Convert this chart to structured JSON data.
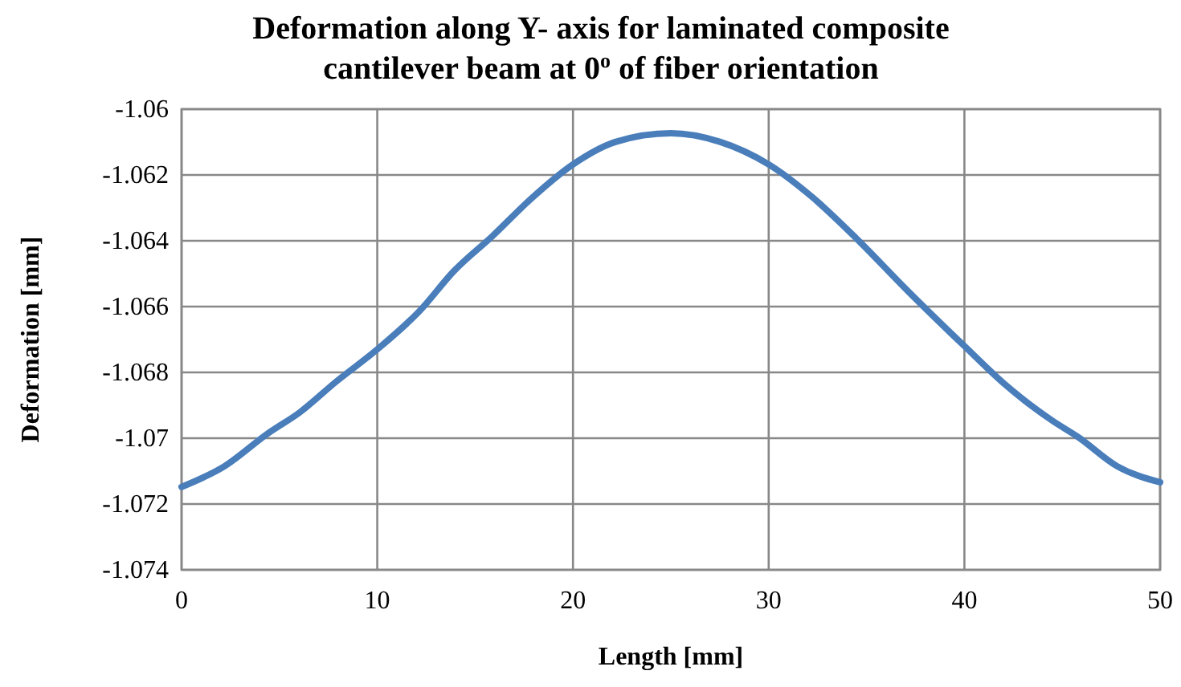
{
  "chart_data": {
    "type": "line",
    "title": "Deformation along Y- axis for laminated composite cantilever beam at 0$^{o}$ of fiber orientation",
    "xlabel": "Length [mm]",
    "ylabel": "Deformation [mm]",
    "xlim": [
      0,
      50
    ],
    "xticks": [
      0,
      10,
      20,
      30,
      40,
      50
    ],
    "ylim": [
      -1.074,
      -1.06
    ],
    "yticks": [
      -1.074,
      -1.072,
      -1.07,
      -1.068,
      -1.066,
      -1.064,
      -1.062,
      -1.06
    ],
    "grid": true,
    "marker": "none",
    "line_style": "solid",
    "series": [
      {
        "color": "#4a7ebb",
        "x": [
          0,
          2.2,
          4.4,
          6.05,
          7.9,
          10,
          12.2,
          13.9,
          15.9,
          17.9,
          20,
          22.2,
          25,
          27.5,
          30,
          32.2,
          34.5,
          37.1,
          40,
          42.1,
          44.5,
          45.8,
          47.8,
          50
        ],
        "values": [
          -1.07148,
          -1.07085,
          -1.06986,
          -1.06921,
          -1.06828,
          -1.0673,
          -1.06611,
          -1.06493,
          -1.06385,
          -1.0627,
          -1.06168,
          -1.06099,
          -1.06073,
          -1.06099,
          -1.06168,
          -1.06266,
          -1.06394,
          -1.06552,
          -1.0672,
          -1.06838,
          -1.06947,
          -1.06996,
          -1.07085,
          -1.07134
        ]
      }
    ]
  }
}
